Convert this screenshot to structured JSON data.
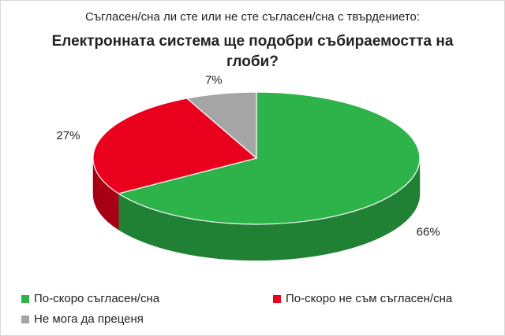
{
  "chart_data": {
    "type": "pie",
    "subtitle": "Съгласен/сна ли сте или не сте съгласен/сна с твърдението:",
    "title_lines": [
      "Електронната система ще подобри събираемостта на",
      "глоби?"
    ],
    "categories": [
      "По-скоро съгласен/сна",
      "По-скоро не съм съгласен/сна",
      "Не мога да преценя"
    ],
    "values": [
      66,
      27,
      7
    ],
    "value_labels": [
      "66%",
      "27%",
      "7%"
    ],
    "colors": [
      "#2db34a",
      "#e8001c",
      "#a5a5a5"
    ]
  }
}
